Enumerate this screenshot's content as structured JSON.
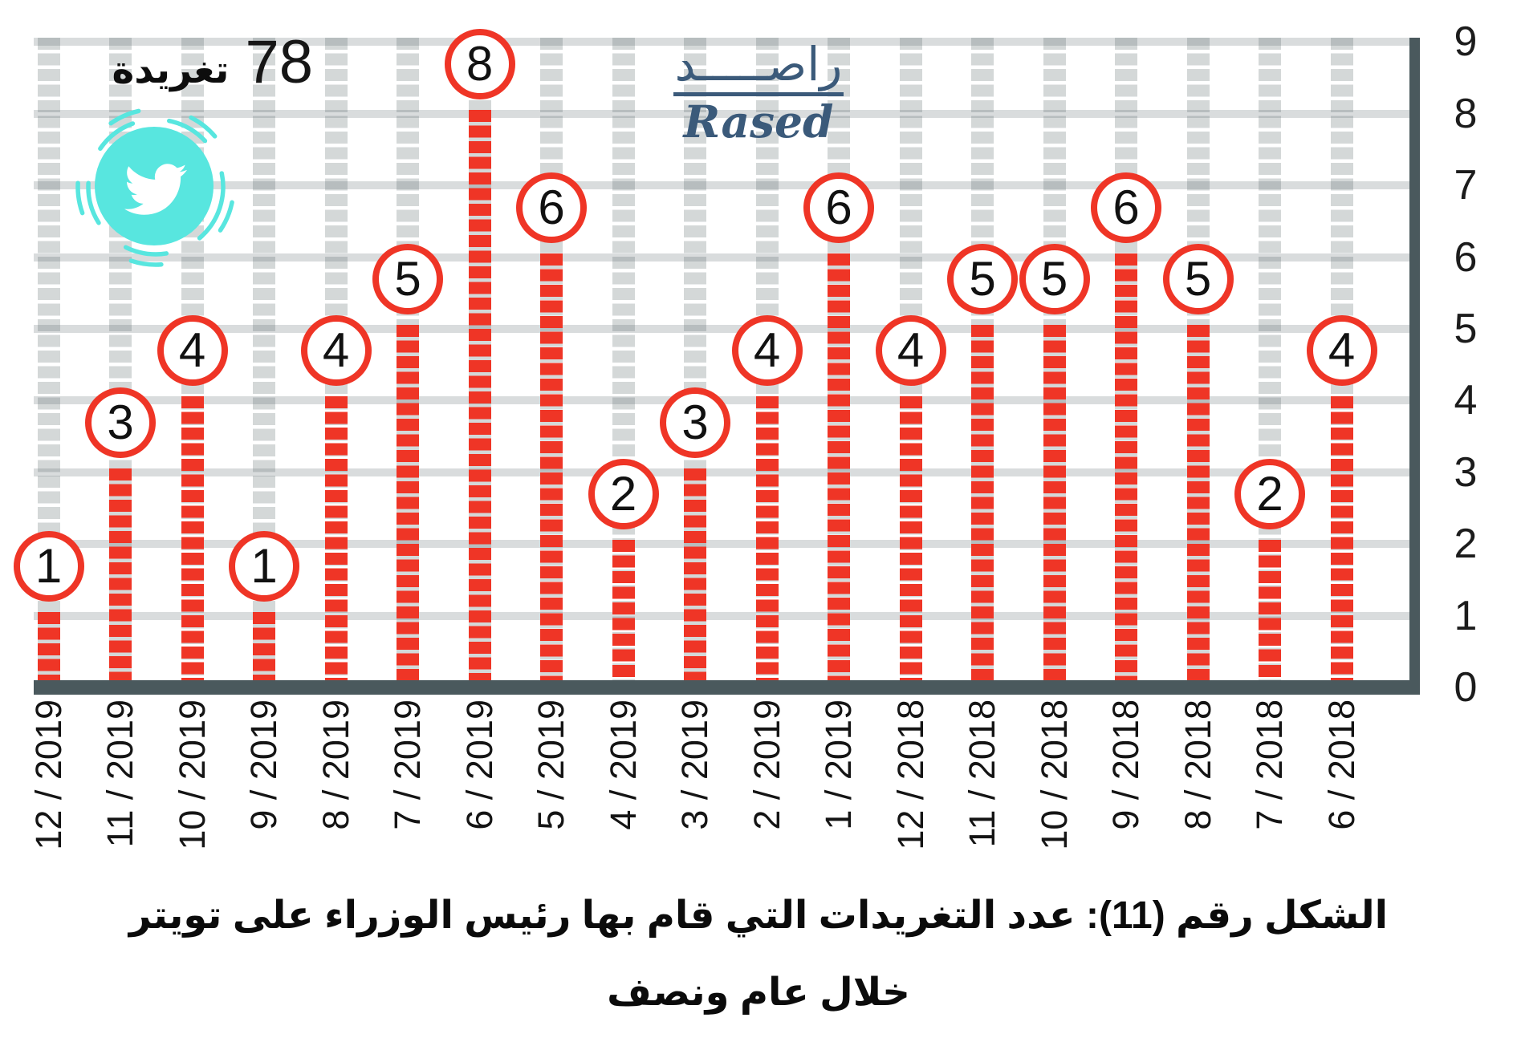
{
  "header": {
    "count": "78",
    "count_label": "تغريدة"
  },
  "logo": {
    "arabic": "راصـــــد",
    "latin": "Rased"
  },
  "chart_data": {
    "type": "bar",
    "title": "78 تغريدة",
    "categories": [
      "12 / 2019",
      "11 / 2019",
      "10 / 2019",
      "9 / 2019",
      "8 / 2019",
      "7 / 2019",
      "6 / 2019",
      "5 / 2019",
      "4 / 2019",
      "3 / 2019",
      "2 / 2019",
      "1 / 2019",
      "12 / 2018",
      "11 / 2018",
      "10 / 2018",
      "9 / 2018",
      "8 / 2018",
      "7 / 2018",
      "6 / 2018"
    ],
    "values": [
      1,
      3,
      4,
      1,
      4,
      5,
      8,
      6,
      2,
      3,
      4,
      6,
      4,
      5,
      5,
      6,
      5,
      2,
      4
    ],
    "total": 78,
    "xlabel": "",
    "ylabel": "",
    "ylim": [
      0,
      9
    ],
    "yticks": [
      0,
      1,
      2,
      3,
      4,
      5,
      6,
      7,
      8,
      9
    ],
    "grid": true,
    "legend": "none",
    "bar_style": "dashed-vertical-segments",
    "marker_style": "circled-value-on-top"
  },
  "caption": {
    "line1": "الشكل رقم (11): عدد التغريدات التي قام بها رئيس الوزراء على تويتر",
    "line2": "خلال عام ونصف"
  },
  "colors": {
    "bar_red": "#ef3526",
    "track_gray": "#d5d9d9",
    "gridline_gray": "#d6dada",
    "axis_dark": "#4a595d",
    "accent_cyan": "#58e6df",
    "logo_blue": "#3b5a7a",
    "text_black": "#111111"
  },
  "icons": {
    "twitter": "twitter-bird-icon"
  }
}
